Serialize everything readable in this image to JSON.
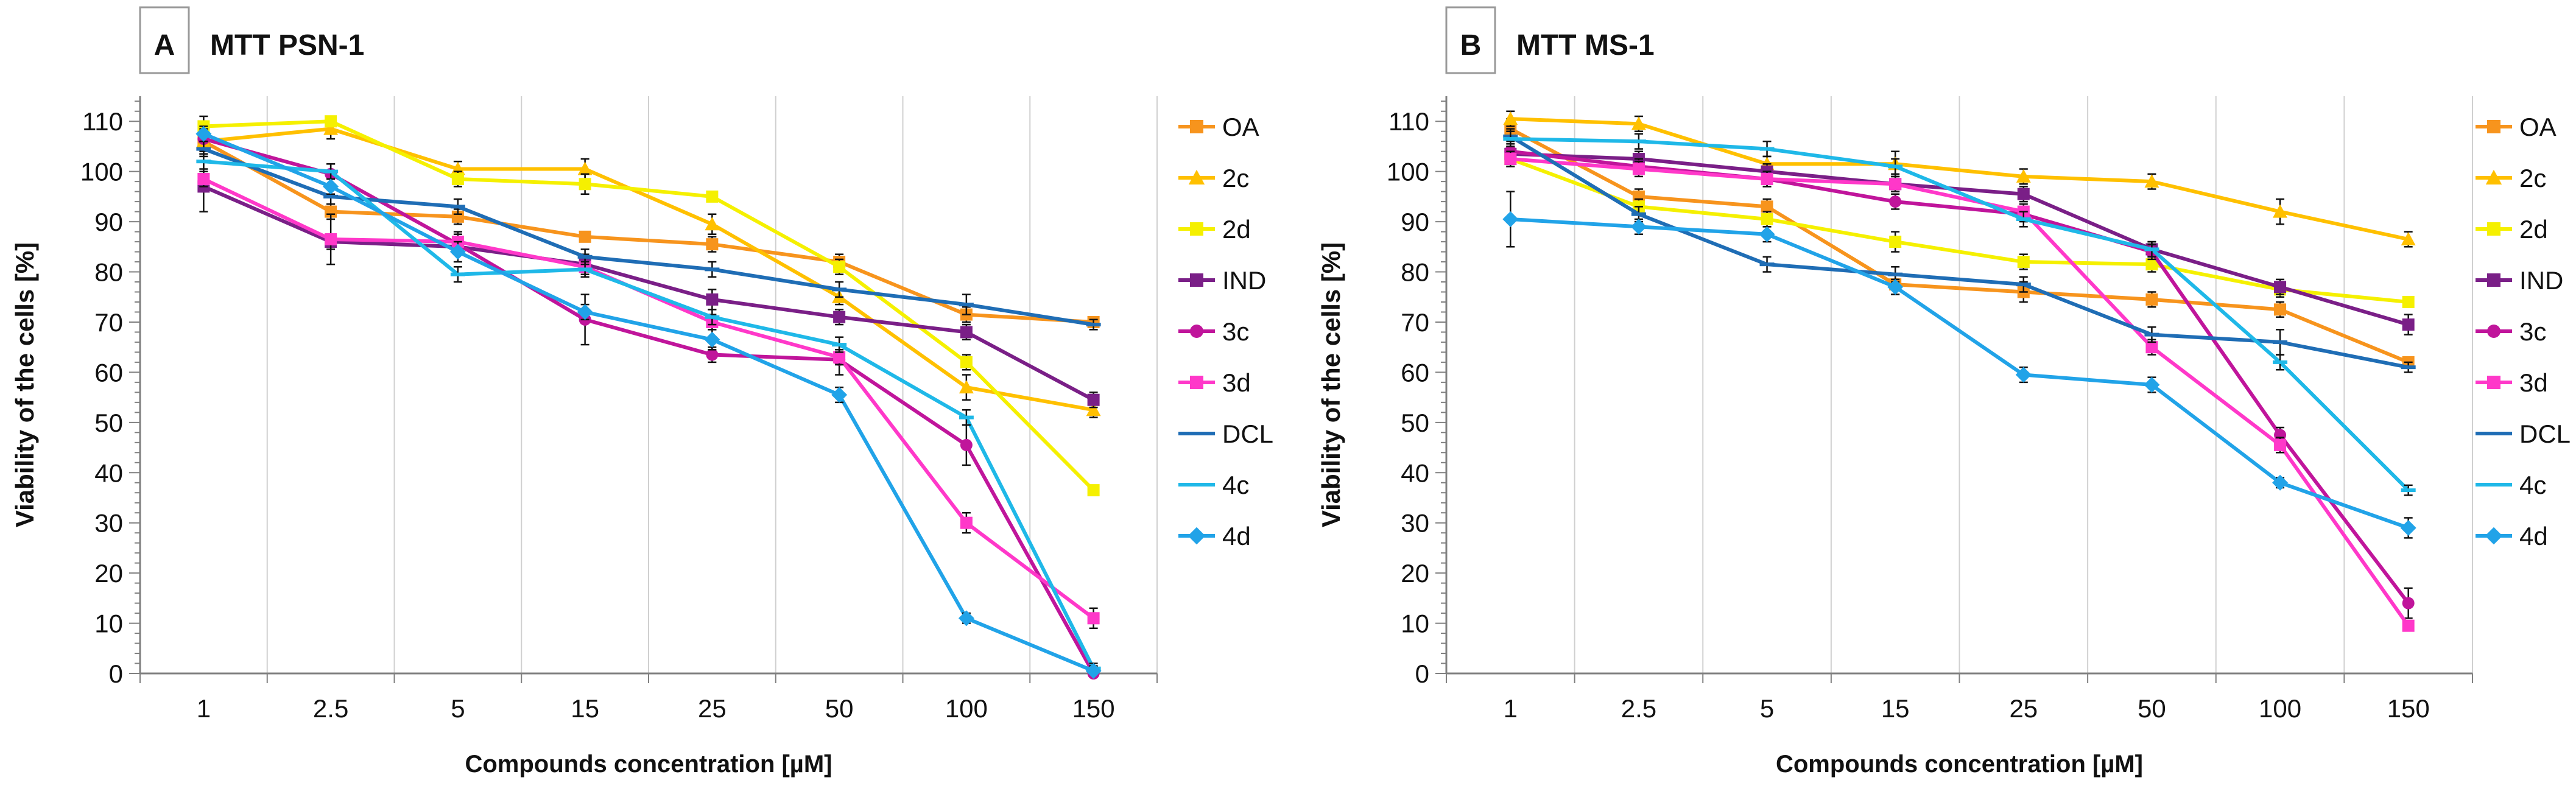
{
  "chart_data": [
    {
      "type": "line",
      "panel_letter": "A",
      "title": "MTT PSN-1",
      "xlabel": "Compounds concentration [µM]",
      "ylabel": "Viability of the cells [%]",
      "categories": [
        "1",
        "2.5",
        "5",
        "15",
        "25",
        "50",
        "100",
        "150"
      ],
      "yticks": [
        "0",
        "10",
        "20",
        "30",
        "40",
        "50",
        "60",
        "70",
        "80",
        "90",
        "100",
        "110"
      ],
      "ylim": [
        0,
        115
      ],
      "grid": "vertical",
      "legend_position": "right",
      "series": [
        {
          "name": "OA",
          "color": "#F7941D",
          "marker": "square",
          "values": [
            106,
            92,
            91,
            87,
            85.5,
            82,
            71.5,
            70
          ],
          "errors": [
            2,
            1.5,
            1.5,
            1,
            1.5,
            1.5,
            1.5,
            1
          ]
        },
        {
          "name": "2c",
          "color": "#FFC000",
          "marker": "triangle",
          "values": [
            106,
            108.5,
            100.5,
            100.5,
            89.5,
            75,
            57,
            52.5
          ],
          "errors": [
            2.5,
            2,
            1.5,
            2,
            2,
            1.5,
            2.5,
            1.5
          ]
        },
        {
          "name": "2d",
          "color": "#F5F000",
          "marker": "square",
          "values": [
            109,
            110,
            98.5,
            97.5,
            95,
            81,
            62,
            36.5
          ],
          "errors": [
            2,
            1,
            1.5,
            2,
            1,
            1.5,
            1.5,
            1
          ]
        },
        {
          "name": "IND",
          "color": "#7A1F87",
          "marker": "square",
          "values": [
            97,
            86,
            85,
            81.5,
            74.5,
            71,
            68,
            54.5
          ],
          "errors": [
            5,
            1.5,
            1.5,
            2,
            2,
            1.5,
            1.5,
            1.5
          ]
        },
        {
          "name": "3c",
          "color": "#C0159B",
          "marker": "circle",
          "values": [
            106.5,
            99.5,
            85.5,
            70.5,
            63.5,
            62.5,
            45.5,
            0
          ],
          "errors": [
            2,
            2,
            2,
            5,
            1.5,
            3,
            4,
            1
          ]
        },
        {
          "name": "3d",
          "color": "#FF38C9",
          "marker": "square",
          "values": [
            98.5,
            86.5,
            86,
            81,
            70,
            63,
            30,
            11
          ],
          "errors": [
            1.5,
            5,
            2,
            2,
            1.5,
            1.5,
            2,
            2
          ]
        },
        {
          "name": "DCL",
          "color": "#1F6DB5",
          "marker": "dash",
          "values": [
            104.5,
            95,
            93,
            83,
            80.5,
            76.5,
            73.5,
            69.5
          ],
          "errors": [
            1.5,
            1.5,
            1.5,
            1.5,
            1.5,
            1.5,
            2,
            1
          ]
        },
        {
          "name": "4c",
          "color": "#1FB8E8",
          "marker": "dash",
          "values": [
            102,
            100,
            79.5,
            80.5,
            71,
            65.5,
            51,
            1
          ],
          "errors": [
            1.5,
            1.5,
            1.5,
            1.5,
            1.5,
            1.5,
            1.5,
            1
          ]
        },
        {
          "name": "4d",
          "color": "#21A3E8",
          "marker": "diamond",
          "values": [
            107.5,
            97,
            84,
            72,
            66.5,
            55.5,
            11,
            0.5
          ],
          "errors": [
            1.5,
            1.5,
            2,
            1.5,
            2,
            1.5,
            1,
            1
          ]
        }
      ]
    },
    {
      "type": "line",
      "panel_letter": "B",
      "title": "MTT MS-1",
      "xlabel": "Compounds concentration [µM]",
      "ylabel": "Viability of the cells [%]",
      "categories": [
        "1",
        "2.5",
        "5",
        "15",
        "25",
        "50",
        "100",
        "150"
      ],
      "yticks": [
        "0",
        "10",
        "20",
        "30",
        "40",
        "50",
        "60",
        "70",
        "80",
        "90",
        "100",
        "110"
      ],
      "ylim": [
        0,
        115
      ],
      "grid": "vertical",
      "legend_position": "right",
      "series": [
        {
          "name": "OA",
          "color": "#F7941D",
          "marker": "square",
          "values": [
            108.5,
            95,
            93,
            77.5,
            76,
            74.5,
            72.5,
            62
          ],
          "errors": [
            2,
            1.5,
            1.5,
            2,
            2,
            1.5,
            1.5,
            1
          ]
        },
        {
          "name": "2c",
          "color": "#FFC000",
          "marker": "triangle",
          "values": [
            110.5,
            109.5,
            101.5,
            101.5,
            99,
            98,
            92,
            86.5
          ],
          "errors": [
            1.5,
            1.5,
            1.5,
            2.5,
            1.5,
            1.5,
            2.5,
            1.5
          ]
        },
        {
          "name": "2d",
          "color": "#F5F000",
          "marker": "square",
          "values": [
            102.5,
            93,
            90.5,
            86,
            82,
            81.5,
            76.5,
            74
          ],
          "errors": [
            1.5,
            1.5,
            1.5,
            2,
            1.5,
            1.5,
            1.5,
            1
          ]
        },
        {
          "name": "IND",
          "color": "#7A1F87",
          "marker": "square",
          "values": [
            103.5,
            102.5,
            100,
            97.5,
            95.5,
            84.5,
            77,
            69.5
          ],
          "errors": [
            1.5,
            1.5,
            1.5,
            1.5,
            1.5,
            1.5,
            1.5,
            2
          ]
        },
        {
          "name": "3c",
          "color": "#C0159B",
          "marker": "circle",
          "values": [
            104,
            101,
            98.5,
            94,
            91.5,
            84,
            47.5,
            14
          ],
          "errors": [
            2,
            1.5,
            1.5,
            1.5,
            1.5,
            1.5,
            1.5,
            3
          ]
        },
        {
          "name": "3d",
          "color": "#FF38C9",
          "marker": "square",
          "values": [
            102.5,
            100.5,
            98.5,
            97.5,
            92,
            65,
            45.5,
            9.5
          ],
          "errors": [
            1.5,
            1.5,
            1.5,
            1.5,
            1.5,
            1.5,
            1.5,
            1
          ]
        },
        {
          "name": "DCL",
          "color": "#1F6DB5",
          "marker": "dash",
          "values": [
            107,
            91.5,
            81.5,
            79.5,
            77.5,
            67.5,
            66,
            61
          ],
          "errors": [
            1.5,
            1.5,
            1.5,
            1.5,
            1.5,
            1.5,
            2.5,
            1
          ]
        },
        {
          "name": "4c",
          "color": "#1FB8E8",
          "marker": "dash",
          "values": [
            106.5,
            106,
            104.5,
            101,
            90.5,
            84.5,
            62,
            36.5
          ],
          "errors": [
            1.5,
            1.5,
            1.5,
            1.5,
            1.5,
            1.5,
            1.5,
            1
          ]
        },
        {
          "name": "4d",
          "color": "#21A3E8",
          "marker": "diamond",
          "values": [
            90.5,
            89,
            87.5,
            77,
            59.5,
            57.5,
            38,
            29
          ],
          "errors": [
            5.5,
            1.5,
            1.5,
            1.5,
            1.5,
            1.5,
            1,
            2
          ]
        }
      ]
    }
  ]
}
